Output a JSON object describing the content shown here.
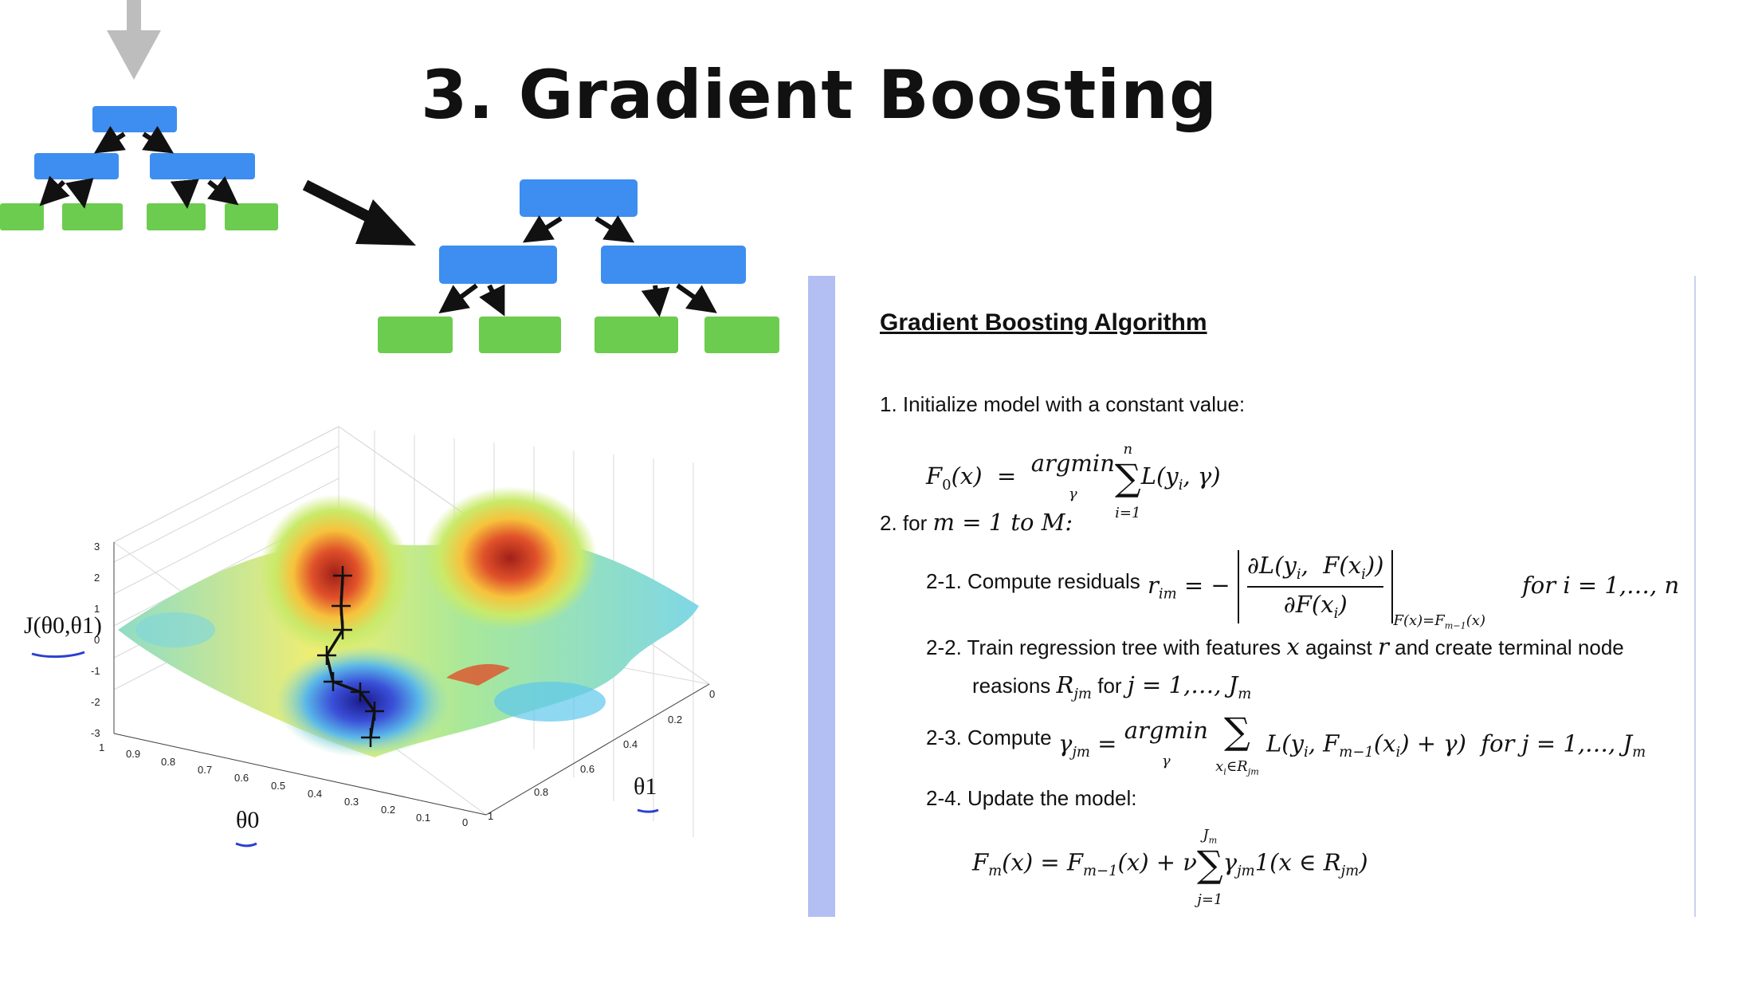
{
  "title": "3. Gradient Boosting",
  "colors": {
    "node_blue": "#3d8ef0",
    "leaf_green": "#6ccc4f",
    "arrow_gray": "#bdbdbd",
    "panel_bar": "#b3bff2"
  },
  "algorithm": {
    "heading": "Gradient Boosting Algorithm",
    "step1": "1. Initialize model with a constant value:",
    "step2_prefix": "2. for",
    "step2_expr": "m = 1 to M:",
    "step2_1": "2-1. Compute residuals",
    "step2_2a": "2-2. Train regression tree with features",
    "step2_2b": "against",
    "step2_2c": "and create terminal node",
    "step2_2d": "reasions",
    "step2_2e": "for",
    "step2_3": "2-3. Compute",
    "step2_4": "2-4. Update the model:"
  },
  "surface_plot": {
    "z_label": "J(θ0,θ1)",
    "x_label": "θ0",
    "y_label": "θ1",
    "z_ticks": [
      "3",
      "2",
      "1",
      "0",
      "-1",
      "-2",
      "-3"
    ],
    "x_ticks": [
      "1",
      "0.9",
      "0.8",
      "0.7",
      "0.6",
      "0.5",
      "0.4",
      "0.3",
      "0.2",
      "0.1",
      "0"
    ],
    "y_ticks": [
      "0",
      "0.2",
      "0.4",
      "0.6",
      "0.8",
      "1"
    ]
  }
}
